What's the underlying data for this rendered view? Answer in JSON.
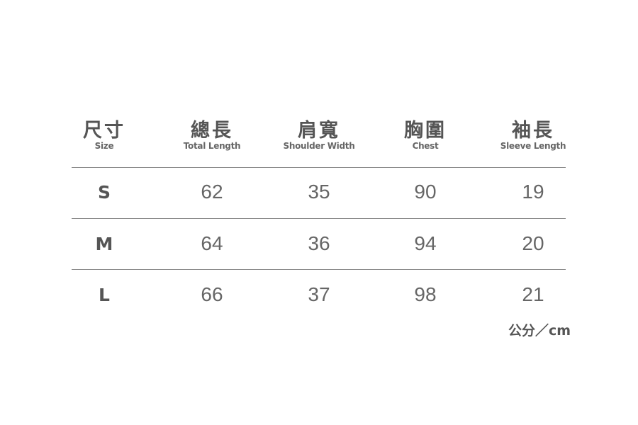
{
  "headers": [
    {
      "zh": "尺寸",
      "en": "Size"
    },
    {
      "zh": "總長",
      "en": "Total Length"
    },
    {
      "zh": "肩寬",
      "en": "Shoulder Width"
    },
    {
      "zh": "胸圍",
      "en": "Chest"
    },
    {
      "zh": "袖長",
      "en": "Sleeve Length"
    }
  ],
  "rows": [
    [
      "S",
      "62",
      "35",
      "90",
      "19"
    ],
    [
      "M",
      "64",
      "36",
      "94",
      "20"
    ],
    [
      "L",
      "66",
      "37",
      "98",
      "21"
    ]
  ],
  "unit": "公分／cm",
  "text_color": "#555555"
}
